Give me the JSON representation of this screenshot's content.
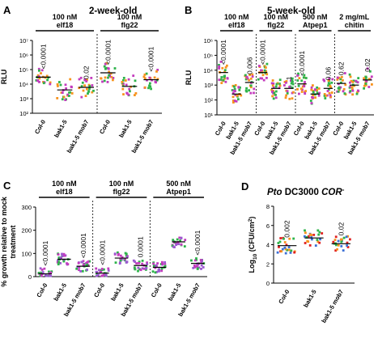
{
  "colors": {
    "green": "#2db34a",
    "orange": "#f7931e",
    "magenta": "#c33bbd",
    "purple": "#9b59d0",
    "blue": "#3b6fd6",
    "red": "#e02020",
    "black": "#000000"
  },
  "chart_data": [
    {
      "panel": "A",
      "type": "scatter",
      "title": "2-week-old",
      "ylabel": "RLU",
      "yscale": "log",
      "ylim": [
        100,
        10000000
      ],
      "yticks": [
        100,
        1000,
        10000,
        100000,
        1000000,
        10000000
      ],
      "yticklabels": [
        "10²",
        "10³",
        "10⁴",
        "10⁵",
        "10⁶",
        "10⁷"
      ],
      "groups": [
        {
          "label": "100 nM elf18",
          "categories": [
            "Col-0",
            "bak1-5",
            "bak1-5 mob7"
          ],
          "medians": [
            30000,
            4000,
            6000
          ],
          "pvalues": [
            "<0.0001",
            "",
            "0.02"
          ]
        },
        {
          "label": "100 nM flg22",
          "categories": [
            "Col-0",
            "bak1-5",
            "bak1-5 mob7"
          ],
          "medians": [
            60000,
            7000,
            20000
          ],
          "pvalues": [
            "<0.0001",
            "",
            "<0.0001"
          ]
        }
      ],
      "point_colors": [
        "green",
        "orange",
        "magenta"
      ]
    },
    {
      "panel": "B",
      "type": "scatter",
      "title": "5-week-old",
      "ylabel": "RLU",
      "yscale": "log",
      "ylim": [
        10,
        1000000
      ],
      "yticks": [
        10,
        100,
        1000,
        10000,
        100000,
        1000000
      ],
      "yticklabels": [
        "10¹",
        "10²",
        "10³",
        "10⁴",
        "10⁵",
        "10⁶"
      ],
      "groups": [
        {
          "label": "100 nM elf18",
          "categories": [
            "Col-0",
            "bak1-5",
            "bak1-5 mob7"
          ],
          "medians": [
            7000,
            250,
            1500
          ],
          "pvalues": [
            "<0.0001",
            "",
            "0.006"
          ]
        },
        {
          "label": "100 nM flg22",
          "categories": [
            "Col-0",
            "bak1-5",
            "bak1-5 mob7"
          ],
          "medians": [
            7000,
            600,
            600
          ],
          "pvalues": [
            "<0.0001",
            "",
            "1"
          ]
        },
        {
          "label": "500 nM Atpep1",
          "categories": [
            "Col-0",
            "bak1-5",
            "bak1-5 mob7"
          ],
          "medians": [
            1200,
            250,
            600
          ],
          "pvalues": [
            "<0.0001",
            "",
            "0.06"
          ]
        },
        {
          "label": "2 mg/mL chitin",
          "categories": [
            "Col-0",
            "bak1-5",
            "bak1-5 mob7"
          ],
          "medians": [
            1300,
            1000,
            2200
          ],
          "pvalues": [
            "0.62",
            "",
            "0.02"
          ]
        }
      ],
      "point_colors": [
        "green",
        "orange",
        "magenta"
      ]
    },
    {
      "panel": "C",
      "type": "scatter",
      "ylabel": "% growth relative to mock treatment",
      "yscale": "linear",
      "ylim": [
        0,
        300
      ],
      "yticks": [
        0,
        100,
        200,
        300
      ],
      "yticklabels": [
        "0",
        "100",
        "200",
        "300"
      ],
      "groups": [
        {
          "label": "100 nM elf18",
          "categories": [
            "Col-0",
            "bak1-5",
            "bak1-5 mob7"
          ],
          "medians": [
            12,
            75,
            45
          ],
          "pvalues": [
            "<0.0001",
            "",
            "<0.0001"
          ]
        },
        {
          "label": "100 nM flg22",
          "categories": [
            "Col-0",
            "bak1-5",
            "bak1-5 mob7"
          ],
          "medians": [
            15,
            80,
            48
          ],
          "pvalues": [
            "<0.0001",
            "",
            "0.0001"
          ]
        },
        {
          "label": "500 nM Atpep1",
          "categories": [
            "Col-0",
            "bak1-5",
            "bak1-5 mob7"
          ],
          "medians": [
            40,
            150,
            57
          ],
          "pvalues": [
            "",
            "",
            "<0.0001"
          ]
        }
      ],
      "point_colors": [
        "green",
        "magenta",
        "purple"
      ]
    },
    {
      "panel": "D",
      "type": "scatter",
      "title_italic": "Pto",
      "title_rest": " DC3000 ",
      "title_cor": "COR",
      "title_sup": "-",
      "ylabel_main": "Log",
      "ylabel_sub": "10",
      "ylabel_rest": " (CFU/cm",
      "ylabel_sup": "2",
      "ylabel_end": ")",
      "yscale": "linear",
      "ylim": [
        0,
        8
      ],
      "yticks": [
        0,
        2,
        4,
        6,
        8
      ],
      "yticklabels": [
        "0",
        "2",
        "4",
        "6",
        "8"
      ],
      "groups": [
        {
          "label": "",
          "categories": [
            "Col-0",
            "bak1-5",
            "bak1-5 mob7"
          ],
          "medians": [
            3.9,
            4.7,
            4.1
          ],
          "pvalues": [
            "0.002",
            "",
            "0.02"
          ]
        }
      ],
      "point_colors": [
        "green",
        "orange",
        "blue",
        "red"
      ]
    }
  ]
}
